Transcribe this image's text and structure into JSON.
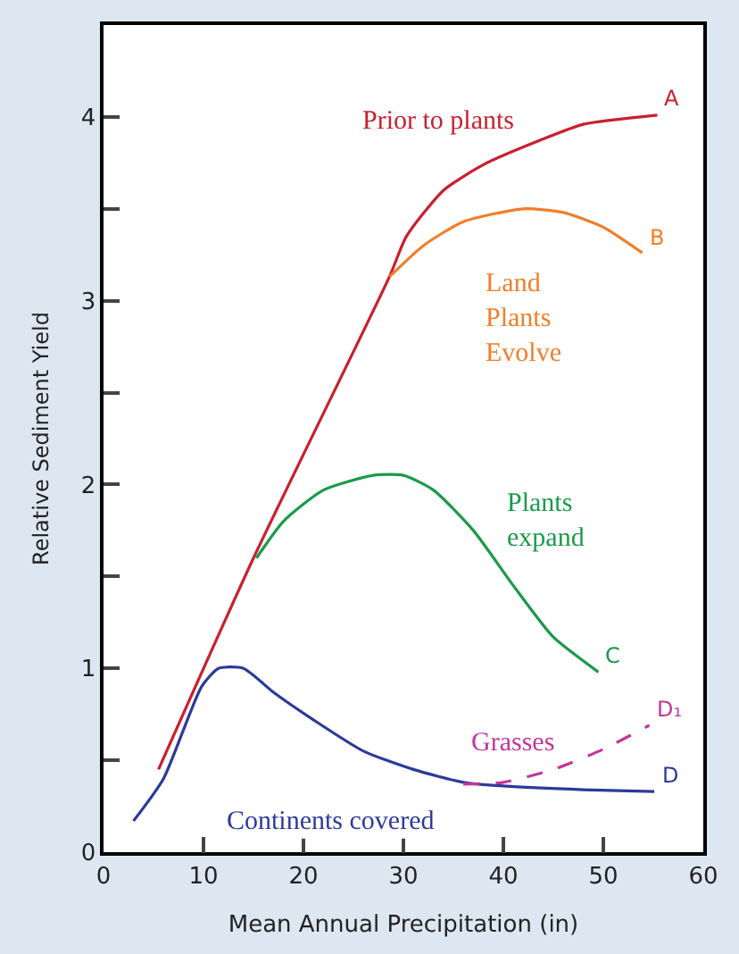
{
  "chart_data": {
    "type": "line",
    "xlabel": "Mean Annual Precipitation (in)",
    "ylabel": "Relative Sediment Yield",
    "xlim": [
      0,
      60
    ],
    "xticks": [
      0,
      10,
      20,
      30,
      40,
      50,
      60
    ],
    "ylim": [
      0,
      4.5
    ],
    "yticks": [
      0,
      {
        "value": 0.5,
        "label": null
      },
      1,
      {
        "value": 1.5,
        "label": null
      },
      2,
      {
        "value": 2.5,
        "label": null
      },
      3,
      {
        "value": 3.5,
        "label": null
      },
      4
    ],
    "legend": false,
    "marker": "none",
    "series": [
      {
        "name": "A",
        "color": "#c8202f",
        "x": [
          5.5,
          15,
          28.6,
          30.3,
          34,
          38,
          44,
          48,
          55.4
        ],
        "values": [
          0.45,
          1.6,
          3.13,
          3.35,
          3.6,
          3.74,
          3.88,
          3.96,
          4.01
        ]
      },
      {
        "name": "B",
        "color": "#f07f2a",
        "x": [
          28.6,
          32,
          36,
          42,
          46,
          50,
          53.9
        ],
        "values": [
          3.13,
          3.3,
          3.43,
          3.5,
          3.48,
          3.4,
          3.26
        ]
      },
      {
        "name": "C",
        "color": "#1a9a4a",
        "x": [
          15.3,
          18,
          22,
          27,
          30,
          33,
          37,
          41,
          45,
          49.5
        ],
        "values": [
          1.6,
          1.8,
          1.97,
          2.05,
          2.05,
          1.97,
          1.75,
          1.45,
          1.17,
          0.98
        ]
      },
      {
        "name": "D",
        "color": "#2c3a9a",
        "x": [
          3,
          6,
          9.8,
          11.5,
          14,
          17,
          21,
          26,
          31,
          36,
          40,
          48,
          55.1
        ],
        "values": [
          0.17,
          0.4,
          0.9,
          1.0,
          1.0,
          0.87,
          0.72,
          0.55,
          0.45,
          0.38,
          0.36,
          0.34,
          0.33
        ]
      },
      {
        "name": "D₁",
        "color": "#c0379a",
        "line_style": "dashed",
        "x": [
          36,
          40,
          45,
          50,
          54.6
        ],
        "values": [
          0.37,
          0.38,
          0.45,
          0.56,
          0.69
        ]
      }
    ],
    "annotations": [
      "Prior to plants",
      "Land\nPlants\nEvolve",
      "Plants\nexpand",
      "Continents covered",
      "Grasses"
    ]
  }
}
